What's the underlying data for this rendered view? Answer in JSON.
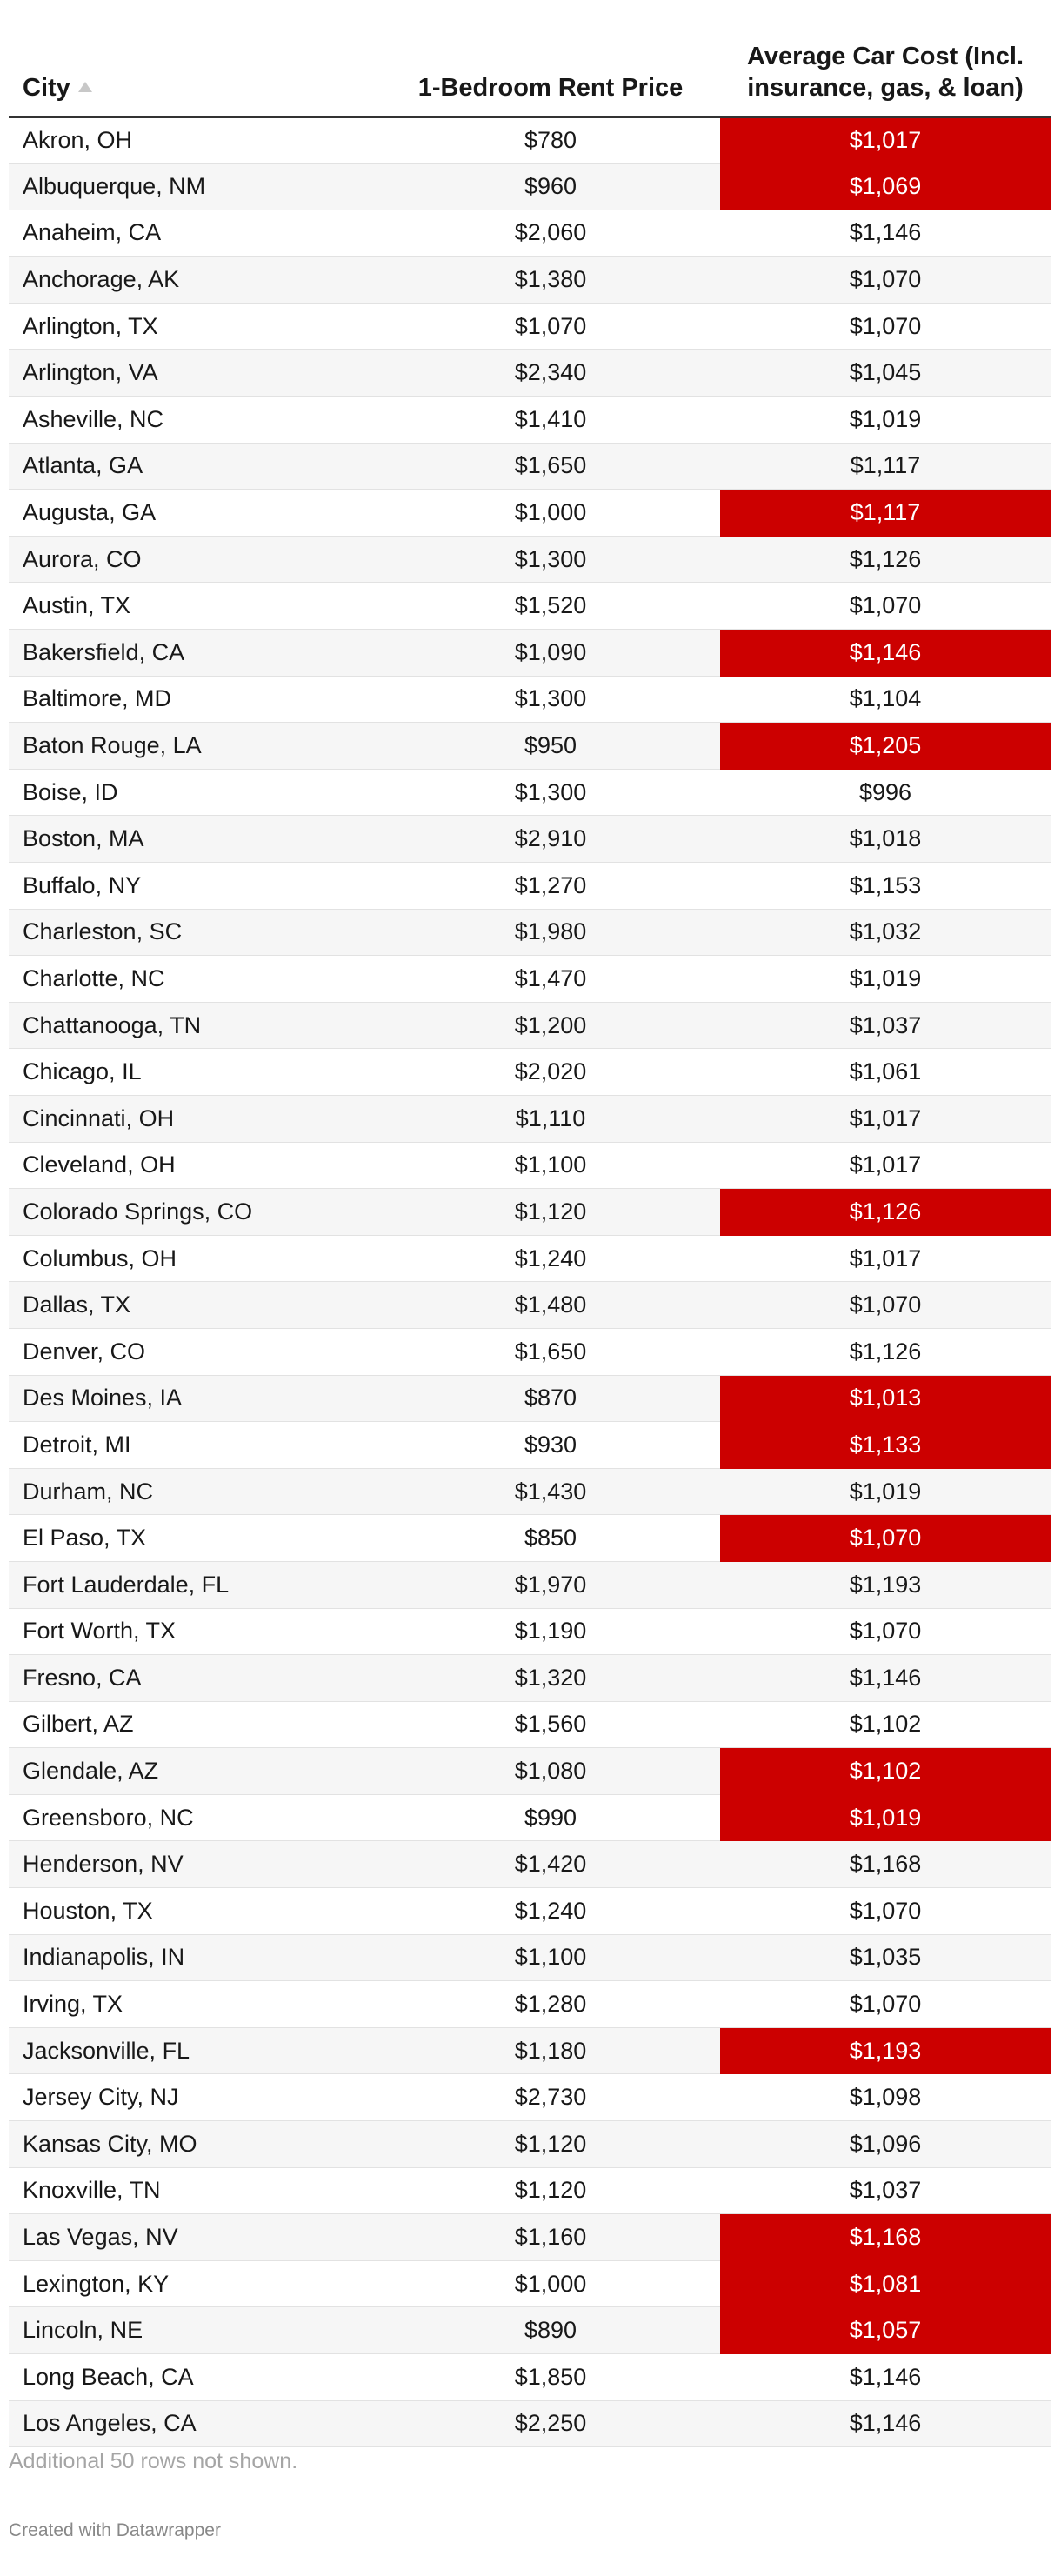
{
  "chart_data": {
    "type": "table",
    "columns": [
      {
        "label": "City",
        "sortable": true,
        "sorted": "ascending"
      },
      {
        "label": "1-Bedroom Rent Price"
      },
      {
        "label": "Average Car Cost (Incl. insurance, gas, & loan)"
      }
    ],
    "highlight_color": "#cc0000",
    "rows": [
      {
        "city": "Akron, OH",
        "rent": "$780",
        "car": "$1,017",
        "highlight": true
      },
      {
        "city": "Albuquerque, NM",
        "rent": "$960",
        "car": "$1,069",
        "highlight": true
      },
      {
        "city": "Anaheim, CA",
        "rent": "$2,060",
        "car": "$1,146",
        "highlight": false
      },
      {
        "city": "Anchorage, AK",
        "rent": "$1,380",
        "car": "$1,070",
        "highlight": false
      },
      {
        "city": "Arlington, TX",
        "rent": "$1,070",
        "car": "$1,070",
        "highlight": false
      },
      {
        "city": "Arlington, VA",
        "rent": "$2,340",
        "car": "$1,045",
        "highlight": false
      },
      {
        "city": "Asheville, NC",
        "rent": "$1,410",
        "car": "$1,019",
        "highlight": false
      },
      {
        "city": "Atlanta, GA",
        "rent": "$1,650",
        "car": "$1,117",
        "highlight": false
      },
      {
        "city": "Augusta, GA",
        "rent": "$1,000",
        "car": "$1,117",
        "highlight": true
      },
      {
        "city": "Aurora, CO",
        "rent": "$1,300",
        "car": "$1,126",
        "highlight": false
      },
      {
        "city": "Austin, TX",
        "rent": "$1,520",
        "car": "$1,070",
        "highlight": false
      },
      {
        "city": "Bakersfield, CA",
        "rent": "$1,090",
        "car": "$1,146",
        "highlight": true
      },
      {
        "city": "Baltimore, MD",
        "rent": "$1,300",
        "car": "$1,104",
        "highlight": false
      },
      {
        "city": "Baton Rouge, LA",
        "rent": "$950",
        "car": "$1,205",
        "highlight": true
      },
      {
        "city": "Boise, ID",
        "rent": "$1,300",
        "car": "$996",
        "highlight": false
      },
      {
        "city": "Boston, MA",
        "rent": "$2,910",
        "car": "$1,018",
        "highlight": false
      },
      {
        "city": "Buffalo, NY",
        "rent": "$1,270",
        "car": "$1,153",
        "highlight": false
      },
      {
        "city": "Charleston, SC",
        "rent": "$1,980",
        "car": "$1,032",
        "highlight": false
      },
      {
        "city": "Charlotte, NC",
        "rent": "$1,470",
        "car": "$1,019",
        "highlight": false
      },
      {
        "city": "Chattanooga, TN",
        "rent": "$1,200",
        "car": "$1,037",
        "highlight": false
      },
      {
        "city": "Chicago, IL",
        "rent": "$2,020",
        "car": "$1,061",
        "highlight": false
      },
      {
        "city": "Cincinnati, OH",
        "rent": "$1,110",
        "car": "$1,017",
        "highlight": false
      },
      {
        "city": "Cleveland, OH",
        "rent": "$1,100",
        "car": "$1,017",
        "highlight": false
      },
      {
        "city": "Colorado Springs, CO",
        "rent": "$1,120",
        "car": "$1,126",
        "highlight": true
      },
      {
        "city": "Columbus, OH",
        "rent": "$1,240",
        "car": "$1,017",
        "highlight": false
      },
      {
        "city": "Dallas, TX",
        "rent": "$1,480",
        "car": "$1,070",
        "highlight": false
      },
      {
        "city": "Denver, CO",
        "rent": "$1,650",
        "car": "$1,126",
        "highlight": false
      },
      {
        "city": "Des Moines, IA",
        "rent": "$870",
        "car": "$1,013",
        "highlight": true
      },
      {
        "city": "Detroit, MI",
        "rent": "$930",
        "car": "$1,133",
        "highlight": true
      },
      {
        "city": "Durham, NC",
        "rent": "$1,430",
        "car": "$1,019",
        "highlight": false
      },
      {
        "city": "El Paso, TX",
        "rent": "$850",
        "car": "$1,070",
        "highlight": true
      },
      {
        "city": "Fort Lauderdale, FL",
        "rent": "$1,970",
        "car": "$1,193",
        "highlight": false
      },
      {
        "city": "Fort Worth, TX",
        "rent": "$1,190",
        "car": "$1,070",
        "highlight": false
      },
      {
        "city": "Fresno, CA",
        "rent": "$1,320",
        "car": "$1,146",
        "highlight": false
      },
      {
        "city": "Gilbert, AZ",
        "rent": "$1,560",
        "car": "$1,102",
        "highlight": false
      },
      {
        "city": "Glendale, AZ",
        "rent": "$1,080",
        "car": "$1,102",
        "highlight": true
      },
      {
        "city": "Greensboro, NC",
        "rent": "$990",
        "car": "$1,019",
        "highlight": true
      },
      {
        "city": "Henderson, NV",
        "rent": "$1,420",
        "car": "$1,168",
        "highlight": false
      },
      {
        "city": "Houston, TX",
        "rent": "$1,240",
        "car": "$1,070",
        "highlight": false
      },
      {
        "city": "Indianapolis, IN",
        "rent": "$1,100",
        "car": "$1,035",
        "highlight": false
      },
      {
        "city": "Irving, TX",
        "rent": "$1,280",
        "car": "$1,070",
        "highlight": false
      },
      {
        "city": "Jacksonville, FL",
        "rent": "$1,180",
        "car": "$1,193",
        "highlight": true
      },
      {
        "city": "Jersey City, NJ",
        "rent": "$2,730",
        "car": "$1,098",
        "highlight": false
      },
      {
        "city": "Kansas City, MO",
        "rent": "$1,120",
        "car": "$1,096",
        "highlight": false
      },
      {
        "city": "Knoxville, TN",
        "rent": "$1,120",
        "car": "$1,037",
        "highlight": false
      },
      {
        "city": "Las Vegas, NV",
        "rent": "$1,160",
        "car": "$1,168",
        "highlight": true
      },
      {
        "city": "Lexington, KY",
        "rent": "$1,000",
        "car": "$1,081",
        "highlight": true
      },
      {
        "city": "Lincoln, NE",
        "rent": "$890",
        "car": "$1,057",
        "highlight": true
      },
      {
        "city": "Long Beach, CA",
        "rent": "$1,850",
        "car": "$1,146",
        "highlight": false
      },
      {
        "city": "Los Angeles, CA",
        "rent": "$2,250",
        "car": "$1,146",
        "highlight": false
      }
    ],
    "notes": "Additional 50 rows not shown."
  },
  "footer": {
    "credit": "Created with Datawrapper"
  }
}
